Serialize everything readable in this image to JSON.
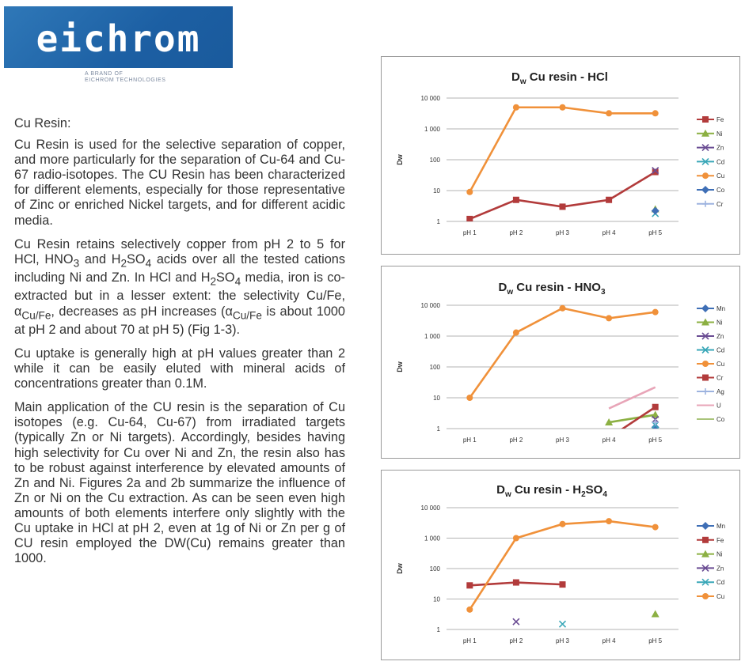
{
  "logo": {
    "name": "eichrom",
    "tagline_1": "A BRAND OF",
    "tagline_2": "EICHROM TECHNOLOGIES"
  },
  "text": {
    "heading": "Cu Resin:",
    "p1": "Cu Resin is used for the selective separation of copper, and more particularly for the separation of Cu-64 and Cu-67 radio-isotopes.  The CU Resin has been characterized for different elements, especially for those representative of Zinc or enriched Nickel targets, and for different acidic media.",
    "p2a": "Cu Resin retains selectively copper from pH 2 to 5 for HCl, HNO",
    "p2b": " and H",
    "p2c": "SO",
    "p2d": " acids over all the tested cations including Ni and Zn.  In HCl and H",
    "p2e": "SO",
    "p2f": " media, iron is co-extracted but in a lesser extent: the selectivity Cu/Fe, α",
    "p2g": ", decreases as pH increases (α",
    "p2h": " is about 1000 at pH 2 and about 70 at pH 5) (Fig 1-3).",
    "sub3": "3",
    "sub2": "2",
    "sub4": "4",
    "sub_cufe": "Cu/Fe",
    "p3": "Cu uptake is generally high at pH values greater than 2 while it can be easily eluted with mineral acids of concentrations greater than 0.1M.",
    "p4": "Main application of the CU resin is the separation of Cu isotopes (e.g. Cu-64, Cu-67) from irradiated targets (typically Zn or Ni targets). Accordingly, besides having high selectivity for Cu over Ni and Zn, the resin also has to be robust against interference by elevated amounts of Zn and Ni. Figures 2a and 2b summarize the influence of Zn or Ni on the Cu extraction. As can be seen even high amounts of both elements interfere only slightly with the Cu uptake in HCl at pH 2, even at 1g of Ni or Zn per g of CU resin employed the DW(Cu) remains greater than 1000."
  },
  "chart_data": [
    {
      "type": "line",
      "title_main": "D",
      "title_sub": "w",
      "title_rest": " Cu resin - HCl",
      "ylabel": "Dw",
      "yscale": "log",
      "ylim": [
        1,
        10000
      ],
      "yticks": [
        "1",
        "10",
        "100",
        "1 000",
        "10 000"
      ],
      "categories": [
        "pH 1",
        "pH 2",
        "pH 3",
        "pH 4",
        "pH 5"
      ],
      "series": [
        {
          "name": "Fe",
          "color": "#b23b3b",
          "marker": "square",
          "values": [
            1.2,
            5,
            3,
            5,
            40
          ]
        },
        {
          "name": "Ni",
          "color": "#8cb043",
          "marker": "triangle",
          "values": [
            null,
            null,
            null,
            null,
            2.5
          ]
        },
        {
          "name": "Zn",
          "color": "#6a4c93",
          "marker": "x",
          "values": [
            null,
            null,
            null,
            null,
            45
          ]
        },
        {
          "name": "Cd",
          "color": "#3aa7b8",
          "marker": "x",
          "values": [
            null,
            null,
            null,
            null,
            1.8
          ]
        },
        {
          "name": "Cu",
          "color": "#f0913a",
          "marker": "circle",
          "values": [
            9,
            5000,
            5000,
            3200,
            3200
          ]
        },
        {
          "name": "Co",
          "color": "#3f6fb6",
          "marker": "diamond",
          "values": [
            null,
            null,
            null,
            null,
            2.2
          ]
        },
        {
          "name": "Cr",
          "color": "#9db3df",
          "marker": "plus",
          "values": [
            null,
            null,
            null,
            null,
            null
          ]
        }
      ]
    },
    {
      "type": "line",
      "title_main": "D",
      "title_sub": "w",
      "title_rest": " Cu resin - HNO",
      "title_sub2": "3",
      "ylabel": "Dw",
      "yscale": "log",
      "ylim": [
        1,
        10000
      ],
      "yticks": [
        "1",
        "10",
        "100",
        "1 000",
        "10 000"
      ],
      "categories": [
        "pH 1",
        "pH 2",
        "pH 3",
        "pH 4",
        "pH 5"
      ],
      "series": [
        {
          "name": "Mn",
          "color": "#3f6fb6",
          "marker": "diamond",
          "values": [
            null,
            null,
            null,
            null,
            1.1
          ]
        },
        {
          "name": "Ni",
          "color": "#8cb043",
          "marker": "triangle",
          "values": [
            null,
            null,
            null,
            1.6,
            2.8
          ]
        },
        {
          "name": "Zn",
          "color": "#6a4c93",
          "marker": "x",
          "values": [
            null,
            null,
            null,
            null,
            2.0
          ]
        },
        {
          "name": "Cd",
          "color": "#3aa7b8",
          "marker": "x",
          "values": [
            null,
            null,
            null,
            null,
            1.3
          ]
        },
        {
          "name": "Cu",
          "color": "#f0913a",
          "marker": "circle",
          "values": [
            10,
            1300,
            8000,
            3800,
            6000
          ]
        },
        {
          "name": "Cr",
          "color": "#b23b3b",
          "marker": "square",
          "values": [
            null,
            null,
            null,
            0.5,
            5
          ]
        },
        {
          "name": "Ag",
          "color": "#9db3df",
          "marker": "plus",
          "values": [
            null,
            null,
            null,
            null,
            1.6
          ]
        },
        {
          "name": "U",
          "color": "#e8a5b8",
          "marker": "none",
          "values": [
            null,
            null,
            null,
            4.5,
            22
          ]
        },
        {
          "name": "Co",
          "color": "#a9c47a",
          "marker": "none",
          "values": [
            null,
            null,
            null,
            null,
            null
          ]
        }
      ]
    },
    {
      "type": "line",
      "title_main": "D",
      "title_sub": "w",
      "title_rest": " Cu resin - H",
      "title_sub2": "2",
      "title_rest2": "SO",
      "title_sub3": "4",
      "ylabel": "Dw",
      "yscale": "log",
      "ylim": [
        1,
        10000
      ],
      "yticks": [
        "1",
        "10",
        "100",
        "1 000",
        "10 000"
      ],
      "categories": [
        "pH 1",
        "pH 2",
        "pH 3",
        "pH 4",
        "pH 5"
      ],
      "series": [
        {
          "name": "Mn",
          "color": "#3f6fb6",
          "marker": "diamond",
          "values": [
            null,
            null,
            null,
            null,
            null
          ]
        },
        {
          "name": "Fe",
          "color": "#b23b3b",
          "marker": "square",
          "values": [
            28,
            35,
            30,
            null,
            null
          ]
        },
        {
          "name": "Ni",
          "color": "#8cb043",
          "marker": "triangle",
          "values": [
            null,
            null,
            null,
            null,
            3.2
          ]
        },
        {
          "name": "Zn",
          "color": "#6a4c93",
          "marker": "x",
          "values": [
            null,
            1.8,
            null,
            null,
            null
          ]
        },
        {
          "name": "Cd",
          "color": "#3aa7b8",
          "marker": "x",
          "values": [
            null,
            null,
            1.5,
            null,
            null
          ]
        },
        {
          "name": "Cu",
          "color": "#f0913a",
          "marker": "circle",
          "values": [
            4.5,
            1000,
            2900,
            3600,
            2300
          ]
        }
      ]
    }
  ]
}
